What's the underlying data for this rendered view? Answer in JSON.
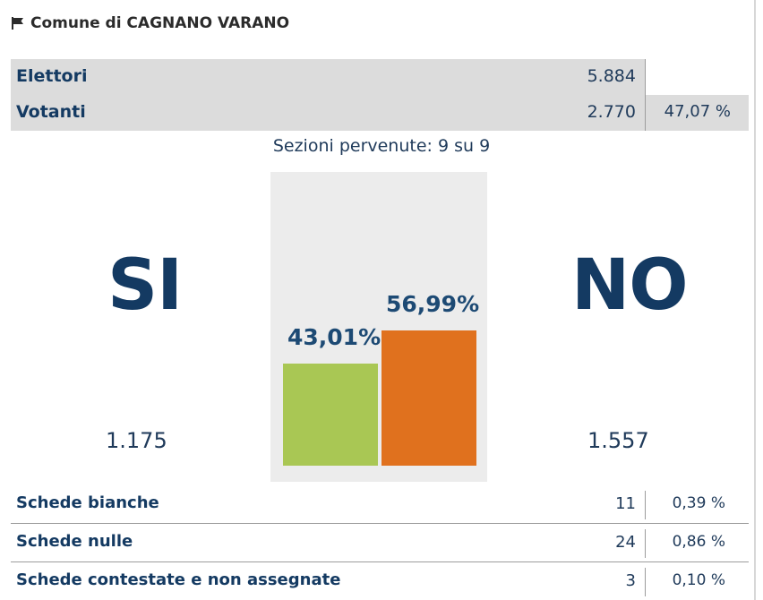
{
  "header": {
    "title": "Comune di CAGNANO VARANO",
    "icon": "flag-icon"
  },
  "summary": {
    "elettori": {
      "label": "Elettori",
      "value": "5.884"
    },
    "votanti": {
      "label": "Votanti",
      "value": "2.770",
      "pct": "47,07 %"
    }
  },
  "sections": "Sezioni pervenute: 9 su 9",
  "results": {
    "si": {
      "label": "SI",
      "count": "1.175",
      "pct_text": "43,01%",
      "pct": 43.01,
      "color": "#a9c754"
    },
    "no": {
      "label": "NO",
      "count": "1.557",
      "pct_text": "56,99%",
      "pct": 56.99,
      "color": "#e0711e"
    }
  },
  "bottom_rows": [
    {
      "label": "Schede bianche",
      "value": "11",
      "pct": "0,39 %"
    },
    {
      "label": "Schede nulle",
      "value": "24",
      "pct": "0,86 %"
    },
    {
      "label": "Schede contestate e non assegnate",
      "value": "3",
      "pct": "0,10 %"
    }
  ]
}
